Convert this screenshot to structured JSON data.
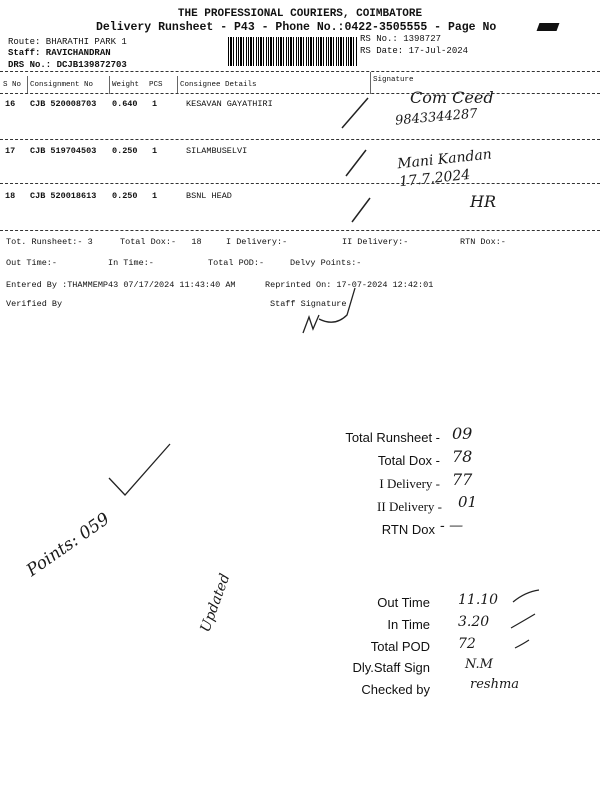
{
  "header": {
    "company": "THE PROFESSIONAL COURIERS, COIMBATORE",
    "subtitle": "Delivery Runsheet - P43 - Phone No.:0422-3505555 - Page No",
    "route": "Route: BHARATHI PARK 1",
    "staff": "Staff: RAVICHANDRAN",
    "drs_no": "DRS No.: DCJB139872703",
    "rs_no": "RS No.: 1398727",
    "rs_date": "RS Date: 17-Jul-2024"
  },
  "table": {
    "columns": [
      "S No",
      "Consignment No",
      "Weight",
      "PCS",
      "Consignee Details",
      "Signature"
    ],
    "rows": [
      {
        "sno": "16",
        "consignment": "CJB 520008703",
        "weight": "0.640",
        "pcs": "1",
        "consignee": "KESAVAN GAYATHIRI",
        "signature_note": "9843344287"
      },
      {
        "sno": "17",
        "consignment": "CJB 519704503",
        "weight": "0.250",
        "pcs": "1",
        "consignee": "SILAMBUSELVI",
        "signature_note": "Mani Kandan 17.7.2024"
      },
      {
        "sno": "18",
        "consignment": "CJB 520018613",
        "weight": "0.250",
        "pcs": "1",
        "consignee": "BSNL HEAD",
        "signature_note": "HR"
      }
    ]
  },
  "summary": {
    "tot_runsheet": "Tot. Runsheet:- 3",
    "total_dox": "Total Dox:-   18",
    "i_delivery": "I Delivery:-",
    "ii_delivery": "II Delivery:-",
    "rtn_dox": "RTN Dox:-",
    "out_time": "Out Time:-",
    "in_time": "In Time:-",
    "total_pod": "Total POD:-",
    "delvy_points": "Delvy Points:-",
    "entered_by": "Entered By :THAMMEMP43 07/17/2024 11:43:40 AM",
    "reprinted_on": "Reprinted On: 17-07-2024 12:42:01",
    "verified_by": "Verified By",
    "staff_signature": "Staff Signature"
  },
  "stamp": {
    "block1": [
      {
        "label": "Total Runsheet -",
        "value": "09"
      },
      {
        "label": "Total Dox -",
        "value": "78"
      },
      {
        "label": "I Delivery -",
        "value": "77"
      },
      {
        "label": "II Delivery -",
        "value": "01"
      },
      {
        "label": "RTN Dox",
        "value": "- —"
      }
    ],
    "block2": [
      {
        "label": "Out Time",
        "value": "11.10"
      },
      {
        "label": "In Time",
        "value": "3.20"
      },
      {
        "label": "Total POD",
        "value": "72"
      },
      {
        "label": "Dly.Staff Sign",
        "value": "N.M"
      },
      {
        "label": "Checked by",
        "value": "reshma"
      }
    ]
  },
  "handwriting": {
    "points": "Points: 059",
    "updated": "Updated"
  }
}
